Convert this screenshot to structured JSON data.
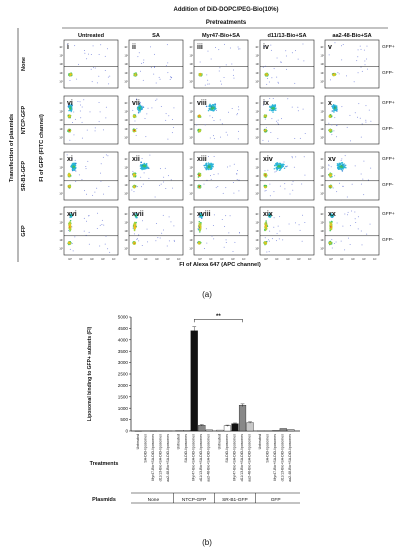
{
  "figure_a": {
    "header": "Addition of DiD-DOPC/PEG-Bio(10%)",
    "subheader": "Pretreatments",
    "columns": [
      "Untreated",
      "SA",
      "Myr47-Bio+SA",
      "d11/13-Bio+SA",
      "aa2-48-Bio+SA"
    ],
    "left_title": "Transfection of plasmids",
    "rows": [
      "None",
      "NTCP-GFP",
      "SR-B1-GFP",
      "GFP"
    ],
    "panels": [
      "i",
      "ii",
      "iii",
      "iv",
      "v",
      "vi",
      "vii",
      "viii",
      "ix",
      "x",
      "xi",
      "xii",
      "xiii",
      "xiv",
      "xv",
      "xvi",
      "xvii",
      "xviii",
      "xix",
      "xx"
    ],
    "y_axis_label": "FI of GFP (FITC channel)",
    "x_axis_label": "FI of Alexa 647 (APC channel)",
    "gate_labels": [
      "GFP+",
      "GFP-"
    ],
    "tick_labels": [
      "10⁴",
      "10³",
      "10²",
      "10¹",
      "10⁰"
    ],
    "caption": "(a)"
  },
  "chart_data": {
    "type": "bar",
    "ylabel": "Liposomal binding to GFP+ subsets (FI)",
    "ylim": [
      0,
      5000
    ],
    "yticks": [
      0,
      500,
      1000,
      1500,
      2000,
      2500,
      3000,
      3500,
      4000,
      4500,
      5000
    ],
    "categories": [
      "Untreated",
      "SA-DiD-liposomes",
      "Myr47-Bio+SA-DiD-liposomes",
      "d11/13-Bio+SA-DiD-liposomes",
      "aa2-48-Bio+SA-DiD-liposomes"
    ],
    "groups": [
      {
        "plasmid": "None",
        "values": [
          0,
          5,
          5,
          5,
          5
        ]
      },
      {
        "plasmid": "NTCP-GFP",
        "values": [
          20,
          30,
          4400,
          250,
          50
        ]
      },
      {
        "plasmid": "SR-B1-GFP",
        "values": [
          40,
          230,
          320,
          1130,
          370
        ]
      },
      {
        "plasmid": "GFP",
        "values": [
          10,
          10,
          20,
          110,
          70
        ]
      }
    ],
    "bar_colors": [
      "#f2f2f2",
      "#ffffff",
      "#111111",
      "#888888",
      "#c8c8c8"
    ],
    "significance": "**",
    "treatments_label": "Treatments",
    "plasmids_label": "Plasmids",
    "caption": "(b)"
  }
}
